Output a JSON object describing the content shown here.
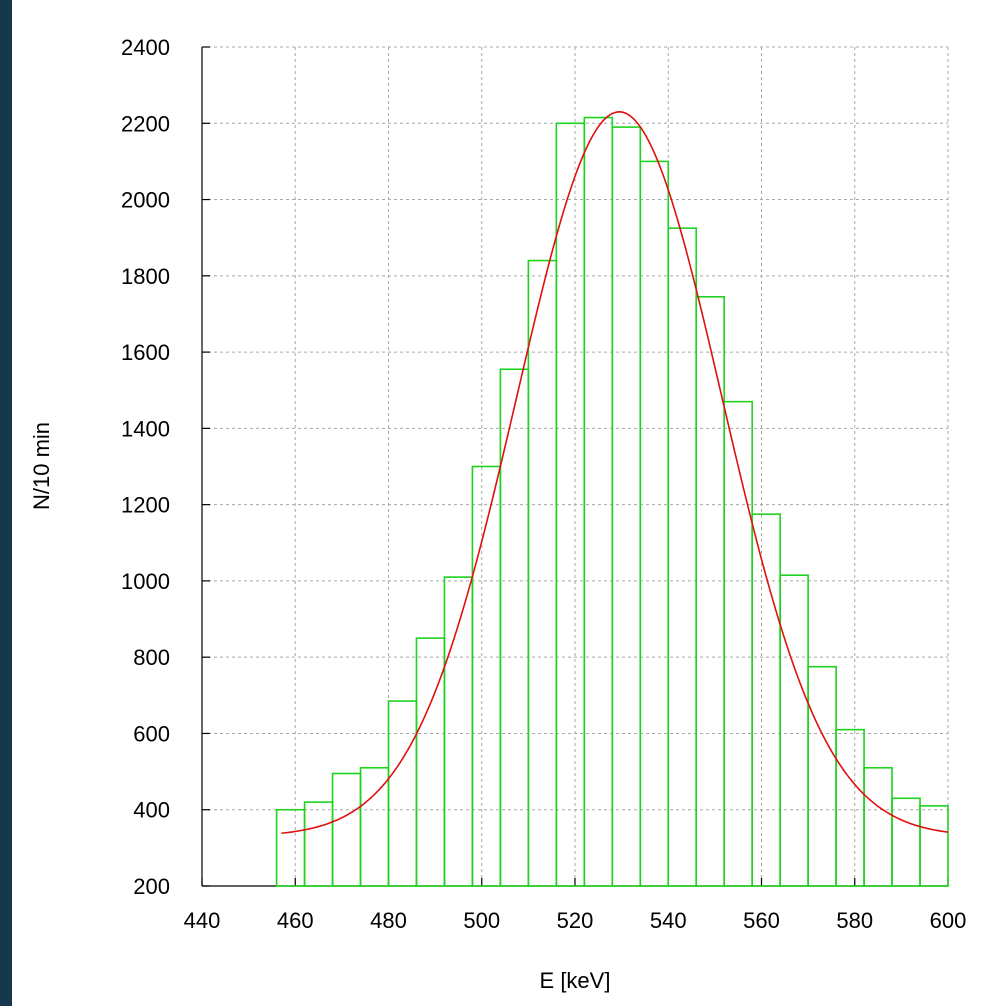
{
  "chart_data": {
    "type": "bar",
    "title": "",
    "xlabel": "E [keV]",
    "ylabel": "N/10 min",
    "xlim": [
      440,
      600
    ],
    "ylim": [
      200,
      2400
    ],
    "x_ticks": [
      "440",
      "460",
      "480",
      "500",
      "520",
      "540",
      "560",
      "580",
      "600"
    ],
    "y_ticks": [
      "200",
      "400",
      "600",
      "800",
      "1000",
      "1200",
      "1400",
      "1600",
      "1800",
      "2000",
      "2200",
      "2400"
    ],
    "grid": true,
    "bin_width": 6,
    "bins": [
      {
        "x_start": 456,
        "x_end": 462,
        "count": 400
      },
      {
        "x_start": 462,
        "x_end": 468,
        "count": 420
      },
      {
        "x_start": 468,
        "x_end": 474,
        "count": 495
      },
      {
        "x_start": 474,
        "x_end": 480,
        "count": 510
      },
      {
        "x_start": 480,
        "x_end": 486,
        "count": 685
      },
      {
        "x_start": 486,
        "x_end": 492,
        "count": 850
      },
      {
        "x_start": 492,
        "x_end": 498,
        "count": 1010
      },
      {
        "x_start": 498,
        "x_end": 504,
        "count": 1300
      },
      {
        "x_start": 504,
        "x_end": 510,
        "count": 1555
      },
      {
        "x_start": 510,
        "x_end": 516,
        "count": 1840
      },
      {
        "x_start": 516,
        "x_end": 522,
        "count": 2200
      },
      {
        "x_start": 522,
        "x_end": 528,
        "count": 2215
      },
      {
        "x_start": 528,
        "x_end": 534,
        "count": 2190
      },
      {
        "x_start": 534,
        "x_end": 540,
        "count": 2100
      },
      {
        "x_start": 540,
        "x_end": 546,
        "count": 1925
      },
      {
        "x_start": 546,
        "x_end": 552,
        "count": 1745
      },
      {
        "x_start": 552,
        "x_end": 558,
        "count": 1470
      },
      {
        "x_start": 558,
        "x_end": 564,
        "count": 1175
      },
      {
        "x_start": 564,
        "x_end": 570,
        "count": 1015
      },
      {
        "x_start": 570,
        "x_end": 576,
        "count": 775
      },
      {
        "x_start": 576,
        "x_end": 582,
        "count": 610
      },
      {
        "x_start": 582,
        "x_end": 588,
        "count": 510
      },
      {
        "x_start": 588,
        "x_end": 594,
        "count": 430
      },
      {
        "x_start": 594,
        "x_end": 600,
        "count": 410
      }
    ],
    "fit_curve": {
      "type": "gaussian_plus_constant",
      "baseline": 330,
      "amplitude": 1900,
      "mean": 529.5,
      "sigma": 22,
      "x_range": [
        457,
        600
      ]
    },
    "colors": {
      "bars": "#1fd21f",
      "fit": "#e01010",
      "grid": "#a8a8a8",
      "background": "#ffffff",
      "page_border": "#16384d"
    }
  }
}
